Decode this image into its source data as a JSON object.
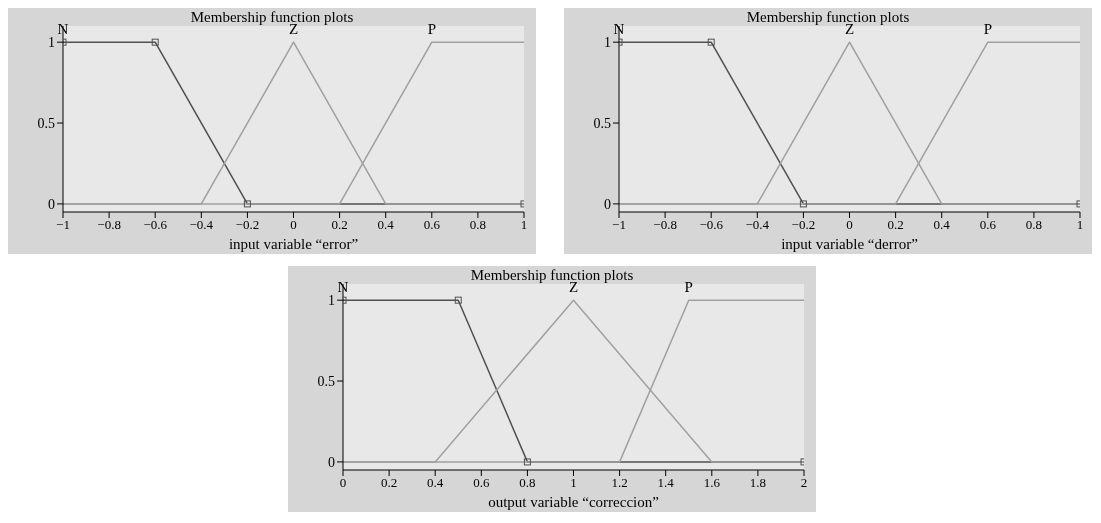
{
  "chart_data": [
    {
      "type": "line",
      "title": "Membership function plots",
      "xlabel": "input variable “error”",
      "xlim": [
        -1,
        1
      ],
      "ylim": [
        -0.05,
        1.1
      ],
      "xticks": [
        {
          "value": -1,
          "label": "−1"
        },
        {
          "value": -0.8,
          "label": "−0.8"
        },
        {
          "value": -0.6,
          "label": "−0.6"
        },
        {
          "value": -0.4,
          "label": "−0.4"
        },
        {
          "value": -0.2,
          "label": "−0.2"
        },
        0,
        0.2,
        0.4,
        0.6,
        0.8,
        1
      ],
      "yticks": [
        0,
        0.5,
        1
      ],
      "series": [
        {
          "name": "N",
          "color": "#505050",
          "marker": "square",
          "x": [
            -1,
            -0.6,
            -0.2,
            1
          ],
          "values": [
            1,
            1,
            0,
            0
          ]
        },
        {
          "name": "Z",
          "color": "#a0a0a0",
          "x": [
            -1,
            -0.4,
            0,
            0.4,
            1
          ],
          "values": [
            0,
            0,
            1,
            0,
            0
          ]
        },
        {
          "name": "P",
          "color": "#a0a0a0",
          "x": [
            -1,
            0.2,
            0.6,
            1
          ],
          "values": [
            0,
            0,
            1,
            1
          ]
        }
      ]
    },
    {
      "type": "line",
      "title": "Membership function plots",
      "xlabel": "input variable “derror”",
      "xlim": [
        -1,
        1
      ],
      "ylim": [
        -0.05,
        1.1
      ],
      "xticks": [
        {
          "value": -1,
          "label": "−1"
        },
        {
          "value": -0.8,
          "label": "−0.8"
        },
        {
          "value": -0.6,
          "label": "−0.6"
        },
        {
          "value": -0.4,
          "label": "−0.4"
        },
        {
          "value": -0.2,
          "label": "−0.2"
        },
        0,
        0.2,
        0.4,
        0.6,
        0.8,
        1
      ],
      "yticks": [
        0,
        0.5,
        1
      ],
      "series": [
        {
          "name": "N",
          "color": "#505050",
          "marker": "square",
          "x": [
            -1,
            -0.6,
            -0.2,
            1
          ],
          "values": [
            1,
            1,
            0,
            0
          ]
        },
        {
          "name": "Z",
          "color": "#a0a0a0",
          "x": [
            -1,
            -0.4,
            0,
            0.4,
            1
          ],
          "values": [
            0,
            0,
            1,
            0,
            0
          ]
        },
        {
          "name": "P",
          "color": "#a0a0a0",
          "x": [
            -1,
            0.2,
            0.6,
            1
          ],
          "values": [
            0,
            0,
            1,
            1
          ]
        }
      ]
    },
    {
      "type": "line",
      "title": "Membership function plots",
      "xlabel": "output variable “correccion”",
      "xlim": [
        0,
        2
      ],
      "ylim": [
        -0.05,
        1.1
      ],
      "xticks": [
        0,
        0.2,
        0.4,
        0.6,
        0.8,
        1,
        1.2,
        1.4,
        1.6,
        1.8,
        2
      ],
      "yticks": [
        0,
        0.5,
        1
      ],
      "series": [
        {
          "name": "N",
          "color": "#505050",
          "marker": "square",
          "x": [
            0,
            0.5,
            0.8,
            2
          ],
          "values": [
            1,
            1,
            0,
            0
          ]
        },
        {
          "name": "Z",
          "color": "#a0a0a0",
          "x": [
            0,
            0.4,
            1,
            1.6,
            2
          ],
          "values": [
            0,
            0,
            1,
            0,
            0
          ]
        },
        {
          "name": "P",
          "color": "#a0a0a0",
          "x": [
            0,
            1.2,
            1.5,
            2
          ],
          "values": [
            0,
            0,
            1,
            1
          ]
        }
      ]
    }
  ]
}
